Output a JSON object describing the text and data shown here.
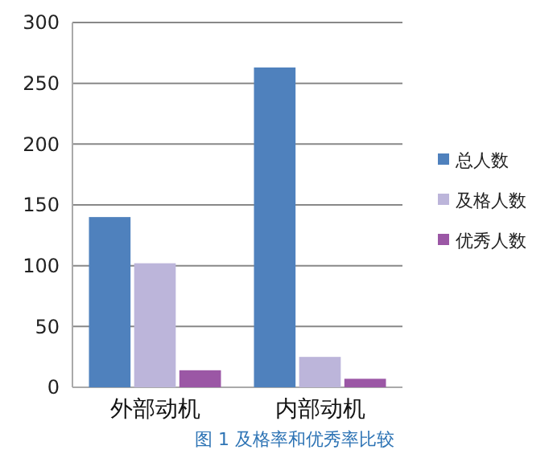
{
  "chart_data": {
    "type": "bar",
    "categories": [
      "外部动机",
      "内部动机"
    ],
    "series": [
      {
        "name": "总人数",
        "color": "#4f81bd",
        "values": [
          140,
          263
        ]
      },
      {
        "name": "及格人数",
        "color": "#bcb5da",
        "values": [
          102,
          25
        ]
      },
      {
        "name": "优秀人数",
        "color": "#9b57a5",
        "values": [
          14,
          7
        ]
      }
    ],
    "ylim": [
      0,
      300
    ],
    "yticks": [
      0,
      50,
      100,
      150,
      200,
      250,
      300
    ],
    "grid": "y",
    "legend": "right",
    "annotations": [
      "图 1 及格率和优秀率比较"
    ]
  }
}
